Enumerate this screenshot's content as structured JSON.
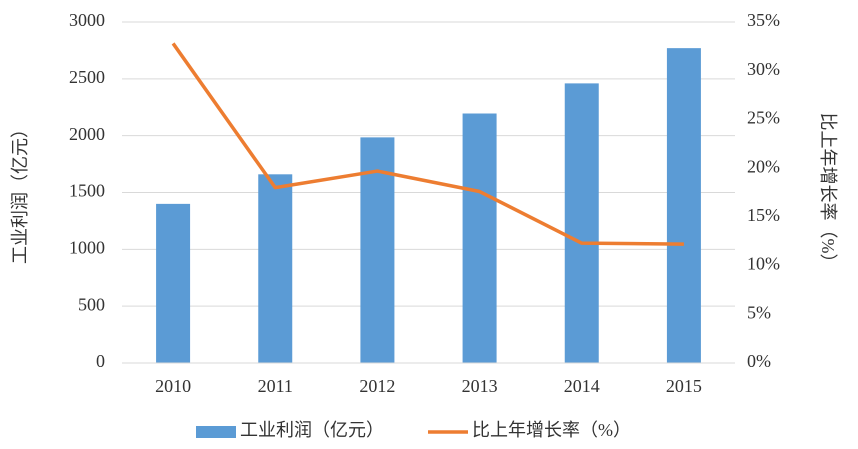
{
  "chart_data": {
    "type": "bar",
    "categories": [
      "2010",
      "2011",
      "2012",
      "2013",
      "2014",
      "2015"
    ],
    "series": [
      {
        "name": "工业利润（亿元）",
        "color": "#5b9bd5",
        "type": "bar",
        "values": [
          1400,
          1660,
          1985,
          2195,
          2460,
          2770
        ]
      },
      {
        "name": "比上年增长率（%）",
        "color": "#ed7d31",
        "type": "line",
        "axis": "y2",
        "values": [
          32.8,
          18.0,
          19.7,
          17.6,
          12.3,
          12.2
        ]
      }
    ],
    "ylabel": "工业利润（亿元）",
    "y2label": "比上年增长率（%）",
    "ylim": [
      0,
      3000
    ],
    "yticks": [
      0,
      500,
      1000,
      1500,
      2000,
      2500,
      3000
    ],
    "y2lim": [
      0,
      35
    ],
    "y2ticks": [
      {
        "value": 0,
        "label": "0%"
      },
      {
        "value": 5,
        "label": "5%"
      },
      {
        "value": 10,
        "label": "10%"
      },
      {
        "value": 15,
        "label": "15%"
      },
      {
        "value": 20,
        "label": "20%"
      },
      {
        "value": 25,
        "label": "25%"
      },
      {
        "value": 30,
        "label": "30%"
      },
      {
        "value": 35,
        "label": "35%"
      }
    ],
    "grid": true,
    "legend": "bottom"
  }
}
